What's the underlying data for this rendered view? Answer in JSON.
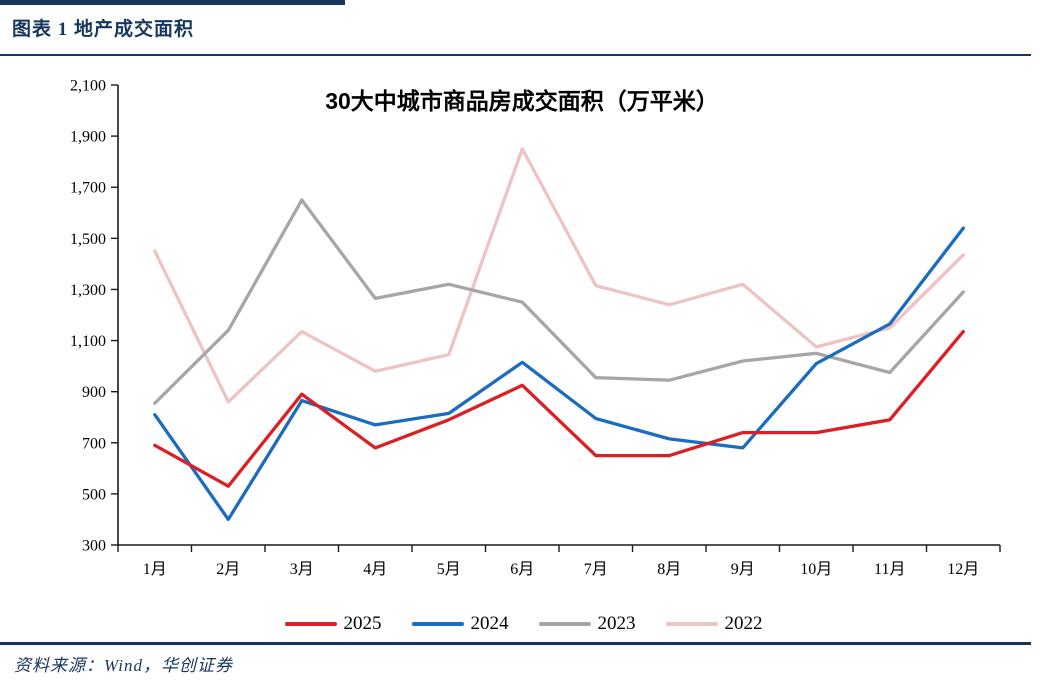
{
  "header": {
    "caption": "图表 1  地产成交面积"
  },
  "footer": {
    "source": "资料来源：Wind，华创证券"
  },
  "colors": {
    "accent_navy": "#17365d",
    "axis": "#1a1a1a",
    "title_text": "#000000"
  },
  "chart_data": {
    "type": "line",
    "title": "30大中城市商品房成交面积（万平米）",
    "categories": [
      "1月",
      "2月",
      "3月",
      "4月",
      "5月",
      "6月",
      "7月",
      "8月",
      "9月",
      "10月",
      "11月",
      "12月"
    ],
    "series": [
      {
        "name": "2025",
        "color": "#dc1f25",
        "values": [
          690,
          530,
          890,
          680,
          790,
          925,
          650,
          650,
          740,
          740,
          790,
          1135
        ]
      },
      {
        "name": "2024",
        "color": "#1b6cbe",
        "values": [
          810,
          400,
          865,
          770,
          815,
          1015,
          795,
          715,
          680,
          1010,
          1165,
          1540
        ]
      },
      {
        "name": "2023",
        "color": "#a6a6a6",
        "values": [
          855,
          1140,
          1650,
          1265,
          1320,
          1250,
          955,
          945,
          1020,
          1050,
          975,
          1290
        ]
      },
      {
        "name": "2022",
        "color": "#eec3c3",
        "values": [
          1450,
          860,
          1135,
          980,
          1045,
          1850,
          1315,
          1240,
          1320,
          1075,
          1150,
          1435
        ]
      }
    ],
    "ylim": [
      300,
      2100
    ],
    "ytick_step": 200,
    "ytick_labels": [
      "300",
      "500",
      "700",
      "900",
      "1,100",
      "1,300",
      "1,500",
      "1,700",
      "1,900",
      "2,100"
    ],
    "xlabel": "",
    "ylabel": "",
    "grid": false,
    "legend_position": "bottom",
    "legend_entries": [
      "2025",
      "2024",
      "2023",
      "2022"
    ]
  }
}
